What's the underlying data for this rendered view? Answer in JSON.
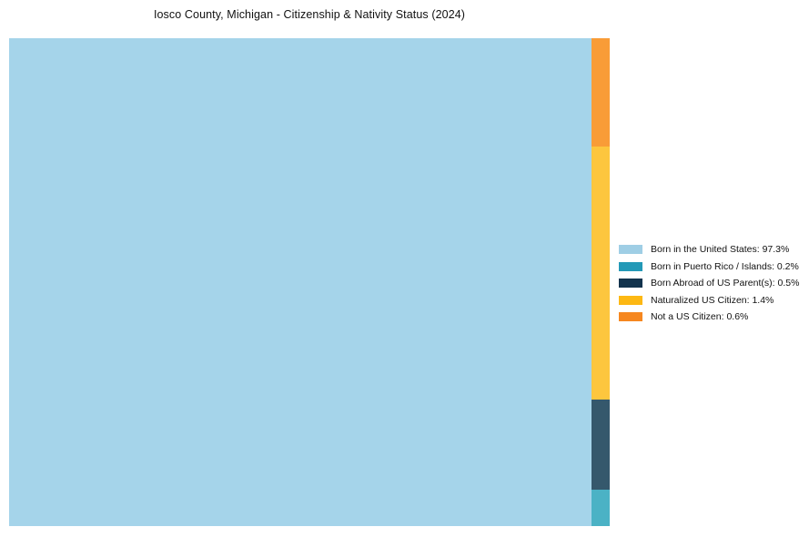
{
  "page": {
    "background": "#ffffff",
    "title": "Iosco County, Michigan - Citizenship & Nativity Status (2024)"
  },
  "chart_data": {
    "type": "treemap",
    "title": "Iosco County, Michigan - Citizenship & Nativity Status (2024)",
    "legend_position": "right",
    "main_label": "Born in the United States",
    "strip_order": [
      "Not a US Citizen",
      "Naturalized US Citizen",
      "Born Abroad of US Parent(s)",
      "Born in Puerto Rico / Islands"
    ],
    "items": [
      {
        "label": "Born in the United States",
        "value": 97.3,
        "legend_text": "Born in the United States: 97.3%",
        "color": "#9FCEE5",
        "fill": "#A5D4EA"
      },
      {
        "label": "Born in Puerto Rico / Islands",
        "value": 0.2,
        "legend_text": "Born in Puerto Rico / Islands: 0.2%",
        "color": "#2399B7",
        "fill": "#4BB2C5"
      },
      {
        "label": "Born Abroad of US Parent(s)",
        "value": 0.5,
        "legend_text": "Born Abroad of US Parent(s): 0.5%",
        "color": "#12334D",
        "fill": "#35586C"
      },
      {
        "label": "Naturalized US Citizen",
        "value": 1.4,
        "legend_text": "Naturalized US Citizen: 1.4%",
        "color": "#FDB813",
        "fill": "#FDC63E"
      },
      {
        "label": "Not a US Citizen",
        "value": 0.6,
        "legend_text": "Not a US Citizen: 0.6%",
        "color": "#F6871F",
        "fill": "#F99C37"
      }
    ]
  }
}
